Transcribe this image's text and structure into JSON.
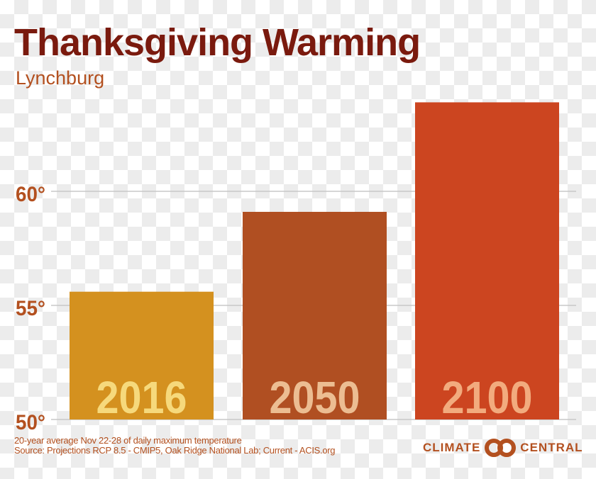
{
  "chart_data": {
    "type": "bar",
    "title": "Thanksgiving Warming",
    "subtitle": "Lynchburg",
    "categories": [
      "2016",
      "2050",
      "2100"
    ],
    "values": [
      55.6,
      59.1,
      63.9
    ],
    "colors": [
      "#d4911f",
      "#b04f22",
      "#cc4520"
    ],
    "label_colors": [
      "#f6d97c",
      "#ecbd92",
      "#f2ab7e"
    ],
    "yticks": [
      50,
      55,
      60
    ],
    "ytick_labels": [
      "50°",
      "55°",
      "60°"
    ],
    "ylim": [
      50,
      65
    ],
    "grid": true,
    "xlabel": "",
    "ylabel": ""
  },
  "footer": {
    "note": "20-year average Nov 22-28 of daily maximum temperature",
    "source": "Source: Projections RCP 8.5 - CMIP5, Oak Ridge National Lab; Current - ACIS.org"
  },
  "logo": {
    "left": "CLIMATE",
    "right": "CENTRAL"
  }
}
